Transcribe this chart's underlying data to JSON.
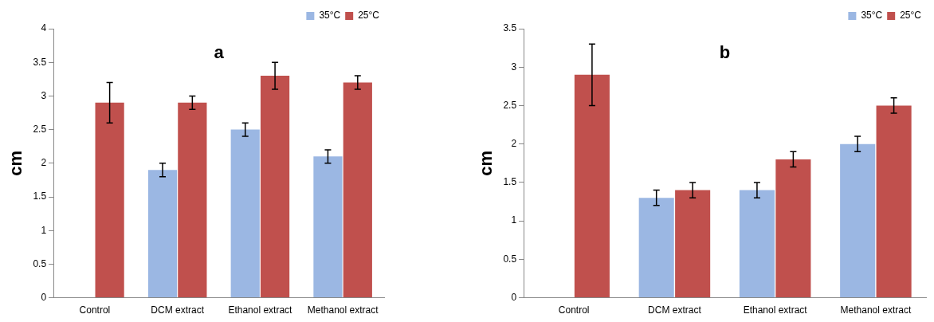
{
  "chart_data": [
    {
      "type": "bar",
      "title": "a",
      "ylabel": "cm",
      "categories": [
        "Control",
        "DCM extract",
        "Ethanol extract",
        "Methanol extract"
      ],
      "series": [
        {
          "name": "35°C",
          "color": "#9bb7e3",
          "values": [
            null,
            1.9,
            2.5,
            2.1
          ],
          "errors": [
            null,
            0.1,
            0.1,
            0.1
          ]
        },
        {
          "name": "25°C",
          "color": "#c0504d",
          "values": [
            2.9,
            2.9,
            3.3,
            3.2
          ],
          "errors": [
            0.3,
            0.1,
            0.2,
            0.1
          ]
        }
      ],
      "ylim": [
        0,
        4
      ],
      "yticks": [
        0,
        0.5,
        1,
        1.5,
        2,
        2.5,
        3,
        3.5,
        4
      ],
      "grid": false,
      "legend": "top right"
    },
    {
      "type": "bar",
      "title": "b",
      "ylabel": "cm",
      "categories": [
        "Control",
        "DCM extract",
        "Ethanol extract",
        "Methanol extract"
      ],
      "series": [
        {
          "name": "35°C",
          "color": "#9bb7e3",
          "values": [
            null,
            1.3,
            1.4,
            2.0
          ],
          "errors": [
            null,
            0.1,
            0.1,
            0.1
          ]
        },
        {
          "name": "25°C",
          "color": "#c0504d",
          "values": [
            2.9,
            1.4,
            1.8,
            2.5
          ],
          "errors": [
            0.4,
            0.1,
            0.1,
            0.1
          ]
        }
      ],
      "ylim": [
        0,
        3.5
      ],
      "yticks": [
        0,
        0.5,
        1,
        1.5,
        2,
        2.5,
        3,
        3.5
      ],
      "grid": false,
      "legend": "top right"
    }
  ]
}
